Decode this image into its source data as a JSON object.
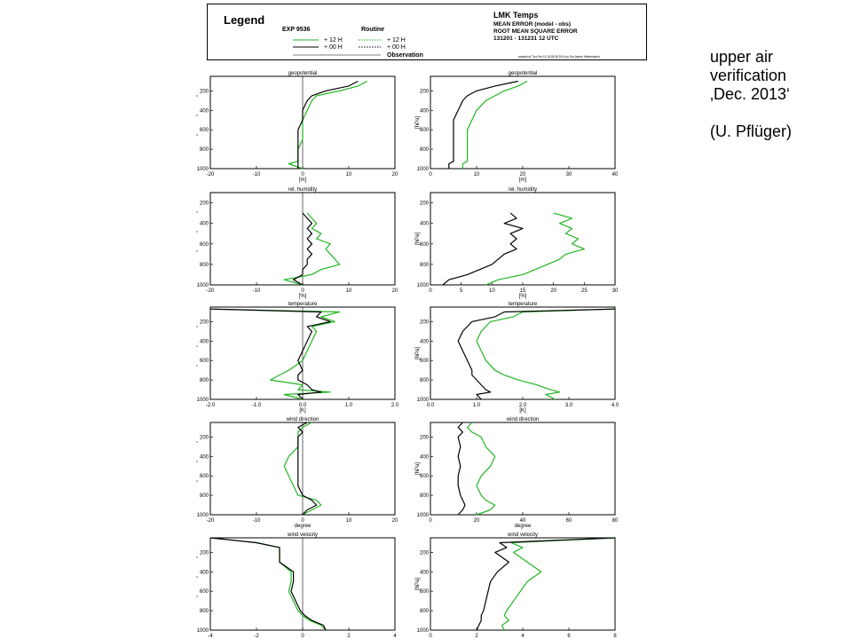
{
  "colors": {
    "exp12": "#22b422",
    "exp00": "#000000",
    "frame": "#000000"
  },
  "legend": {
    "heading": "Legend",
    "exp_label": "EXP 9536",
    "routine_label": "Routine",
    "row12": "+ 12 H",
    "row00": "+ 00 H",
    "routine12": "+ 12 H",
    "routine00": "+ 00 H",
    "obs_label": "Observation",
    "title": "LMK Temps",
    "line1": "MEAN ERROR (model - obs)",
    "line2": "ROOT MEAN SQUARE ERROR",
    "line3": "131201 - 131231 12 UTC",
    "created": "created at Thu Feb 13 15:28:38 2014 by Ow.Jaeher Wetterdienst"
  },
  "caption": {
    "line1": "upper air",
    "line2": "verification",
    "line3": "‚Dec. 2013‘",
    "line4": "(U. Pflüger)"
  },
  "chart_data": [
    {
      "type": "line",
      "title": "geopotential",
      "xlabel": "[m]",
      "ylabel": "",
      "xlim": [
        -20,
        20
      ],
      "xticks": [
        -20,
        -10,
        0,
        10,
        20
      ],
      "xtick_labels": [
        "-20",
        "-10",
        "0",
        "10",
        "20"
      ],
      "ylim": [
        1000,
        50
      ],
      "yticks": [
        200,
        400,
        600,
        800,
        1000
      ],
      "zero_line": true,
      "grid": false,
      "pressure": [
        100,
        150,
        200,
        250,
        300,
        400,
        500,
        600,
        700,
        800,
        850,
        925,
        950,
        1000
      ],
      "series": [
        {
          "name": "+ 12 H",
          "color": "#22b422",
          "values": [
            14,
            12,
            8,
            3,
            2,
            1,
            0,
            0,
            0,
            -1,
            -1,
            -1,
            -3,
            0
          ]
        },
        {
          "name": "+ 00 H",
          "color": "#000000",
          "values": [
            12,
            10,
            5,
            2,
            1,
            0,
            0,
            -1,
            -1,
            -1,
            -1,
            -1,
            -1,
            -1
          ]
        }
      ]
    },
    {
      "type": "line",
      "title": "geopotential",
      "xlabel": "[m]",
      "ylabel": "[hPa]",
      "xlim": [
        0,
        40
      ],
      "xticks": [
        0,
        10,
        20,
        30,
        40
      ],
      "xtick_labels": [
        "0",
        "10",
        "20",
        "30",
        "40"
      ],
      "ylim": [
        1000,
        50
      ],
      "yticks": [
        200,
        400,
        600,
        800,
        1000
      ],
      "zero_line": false,
      "grid": false,
      "pressure": [
        100,
        150,
        200,
        250,
        300,
        400,
        500,
        600,
        700,
        800,
        850,
        925,
        950,
        1000
      ],
      "series": [
        {
          "name": "+ 12 H",
          "color": "#22b422",
          "values": [
            21,
            19,
            16,
            14,
            12,
            10,
            9,
            8,
            8,
            8,
            8,
            8,
            7,
            7
          ]
        },
        {
          "name": "+ 00 H",
          "color": "#000000",
          "values": [
            19,
            14,
            10,
            8,
            7,
            6,
            5,
            5,
            5,
            5,
            5,
            5,
            4,
            4
          ]
        }
      ]
    },
    {
      "type": "line",
      "title": "rel. humidity",
      "xlabel": "[%]",
      "ylabel": "",
      "xlim": [
        -20,
        20
      ],
      "xticks": [
        -20,
        -10,
        0,
        10,
        20
      ],
      "xtick_labels": [
        "-20",
        "-10",
        "0",
        "10",
        "20"
      ],
      "ylim": [
        1000,
        100
      ],
      "yticks": [
        200,
        400,
        600,
        800,
        1000
      ],
      "zero_line": true,
      "grid": false,
      "pressure": [
        300,
        350,
        400,
        450,
        500,
        550,
        600,
        650,
        700,
        750,
        800,
        850,
        900,
        950,
        1000
      ],
      "series": [
        {
          "name": "+ 12 H",
          "color": "#22b422",
          "values": [
            1,
            2,
            3,
            2,
            4,
            3,
            6,
            5,
            6,
            7,
            8,
            4,
            2,
            -4,
            0
          ]
        },
        {
          "name": "+ 00 H",
          "color": "#000000",
          "values": [
            0,
            1,
            2,
            1,
            2,
            1,
            2,
            1,
            2,
            1,
            1,
            0,
            0,
            -2,
            0
          ]
        }
      ]
    },
    {
      "type": "line",
      "title": "rel. humidity",
      "xlabel": "[%]",
      "ylabel": "[hPa]",
      "xlim": [
        0,
        30
      ],
      "xticks": [
        0,
        5,
        10,
        15,
        20,
        25,
        30
      ],
      "xtick_labels": [
        "0",
        "5",
        "10",
        "15",
        "20",
        "25",
        "30"
      ],
      "ylim": [
        1000,
        100
      ],
      "yticks": [
        200,
        400,
        600,
        800,
        1000
      ],
      "zero_line": false,
      "grid": false,
      "pressure": [
        300,
        350,
        400,
        450,
        500,
        550,
        600,
        650,
        700,
        750,
        800,
        850,
        900,
        950,
        1000
      ],
      "series": [
        {
          "name": "+ 12 H",
          "color": "#22b422",
          "values": [
            20,
            23,
            21,
            23,
            22,
            24,
            23,
            25,
            22,
            21,
            19,
            17,
            15,
            11,
            9
          ]
        },
        {
          "name": "+ 00 H",
          "color": "#000000",
          "values": [
            13,
            14,
            12,
            15,
            13,
            14,
            13,
            14,
            12,
            11,
            10,
            8,
            6,
            3,
            2
          ]
        }
      ]
    },
    {
      "type": "line",
      "title": "temperature",
      "xlabel": "[K]",
      "ylabel": "",
      "xlim": [
        -2,
        2
      ],
      "xticks": [
        -2,
        -1,
        0,
        1,
        2
      ],
      "xtick_labels": [
        "-2.0",
        "-1.0",
        "0.0",
        "1.0",
        "2.0"
      ],
      "ylim": [
        1000,
        50
      ],
      "yticks": [
        200,
        400,
        600,
        800,
        1000
      ],
      "zero_line": true,
      "grid": false,
      "pressure": [
        70,
        100,
        150,
        200,
        250,
        300,
        400,
        500,
        600,
        700,
        750,
        800,
        850,
        900,
        925,
        950,
        1000
      ],
      "series": [
        {
          "name": "+ 12 H",
          "color": "#22b422",
          "values": [
            -2.0,
            0.8,
            0.4,
            0.7,
            0.2,
            0.3,
            0.2,
            0.1,
            0.0,
            -0.3,
            -0.5,
            -0.7,
            0.0,
            -0.1,
            0.6,
            -0.4,
            0.0
          ]
        },
        {
          "name": "+ 00 H",
          "color": "#000000",
          "values": [
            -2.0,
            0.4,
            0.3,
            0.6,
            0.1,
            0.2,
            0.1,
            0.0,
            -0.1,
            0.0,
            -0.1,
            -0.1,
            0.1,
            0.2,
            0.4,
            -0.1,
            0.0
          ]
        }
      ]
    },
    {
      "type": "line",
      "title": "temperature",
      "xlabel": "[K]",
      "ylabel": "[hPa]",
      "xlim": [
        0,
        4
      ],
      "xticks": [
        0,
        1,
        2,
        3,
        4
      ],
      "xtick_labels": [
        "0.0",
        "1.0",
        "2.0",
        "3.0",
        "4.0"
      ],
      "ylim": [
        1000,
        50
      ],
      "yticks": [
        200,
        400,
        600,
        800,
        1000
      ],
      "zero_line": false,
      "grid": false,
      "pressure": [
        70,
        100,
        150,
        200,
        250,
        300,
        400,
        500,
        600,
        700,
        750,
        800,
        850,
        900,
        925,
        950,
        1000
      ],
      "series": [
        {
          "name": "+ 12 H",
          "color": "#22b422",
          "values": [
            4.0,
            2.0,
            1.8,
            1.3,
            1.2,
            1.1,
            1.0,
            1.1,
            1.2,
            1.4,
            1.6,
            1.9,
            2.3,
            2.6,
            2.8,
            2.5,
            2.7
          ]
        },
        {
          "name": "+ 00 H",
          "color": "#000000",
          "values": [
            4.0,
            1.6,
            1.4,
            0.9,
            0.8,
            0.7,
            0.6,
            0.7,
            0.8,
            0.9,
            0.9,
            1.0,
            1.1,
            1.2,
            1.3,
            1.0,
            1.1
          ]
        }
      ]
    },
    {
      "type": "line",
      "title": "wind direction",
      "xlabel": "degree",
      "ylabel": "",
      "xlim": [
        -20,
        20
      ],
      "xticks": [
        -20,
        -10,
        0,
        10,
        20
      ],
      "xtick_labels": [
        "-20",
        "-10",
        "0",
        "10",
        "20"
      ],
      "ylim": [
        1000,
        50
      ],
      "yticks": [
        200,
        400,
        600,
        800,
        1000
      ],
      "zero_line": true,
      "grid": false,
      "pressure": [
        50,
        100,
        150,
        200,
        300,
        400,
        500,
        600,
        700,
        800,
        850,
        900,
        950,
        1000
      ],
      "series": [
        {
          "name": "+ 12 H",
          "color": "#22b422",
          "values": [
            2,
            0,
            -1,
            -1,
            -1,
            -3,
            -4,
            -3,
            -2,
            -1,
            3,
            4,
            2,
            0
          ]
        },
        {
          "name": "+ 00 H",
          "color": "#000000",
          "values": [
            1,
            -1,
            0,
            -1,
            -1,
            -1,
            -1,
            -1,
            -1,
            0,
            2,
            3,
            1,
            0
          ]
        }
      ]
    },
    {
      "type": "line",
      "title": "wind direction",
      "xlabel": "degree",
      "ylabel": "[hPa]",
      "xlim": [
        0,
        80
      ],
      "xticks": [
        0,
        20,
        40,
        60,
        80
      ],
      "xtick_labels": [
        "0",
        "20",
        "40",
        "60",
        "80"
      ],
      "ylim": [
        1000,
        50
      ],
      "yticks": [
        200,
        400,
        600,
        800,
        1000
      ],
      "zero_line": false,
      "grid": false,
      "pressure": [
        50,
        100,
        150,
        200,
        300,
        400,
        500,
        600,
        700,
        800,
        850,
        900,
        950,
        1000
      ],
      "series": [
        {
          "name": "+ 12 H",
          "color": "#22b422",
          "values": [
            18,
            16,
            18,
            22,
            24,
            28,
            26,
            22,
            20,
            22,
            24,
            28,
            26,
            20
          ]
        },
        {
          "name": "+ 00 H",
          "color": "#000000",
          "values": [
            14,
            12,
            14,
            12,
            13,
            12,
            13,
            12,
            12,
            13,
            14,
            15,
            14,
            12
          ]
        }
      ]
    },
    {
      "type": "line",
      "title": "wind velocity",
      "xlabel": "[m/s]",
      "ylabel": "",
      "xlim": [
        -4,
        4
      ],
      "xticks": [
        -4,
        -2,
        0,
        2,
        4
      ],
      "xtick_labels": [
        "-4",
        "-2",
        "0",
        "2",
        "4"
      ],
      "ylim": [
        1000,
        50
      ],
      "yticks": [
        200,
        400,
        600,
        800,
        1000
      ],
      "zero_line": true,
      "grid": false,
      "pressure": [
        50,
        100,
        150,
        200,
        300,
        400,
        500,
        600,
        700,
        800,
        850,
        900,
        950,
        1000
      ],
      "series": [
        {
          "name": "+ 12 H",
          "color": "#22b422",
          "values": [
            -4,
            -2,
            -1,
            -1,
            -1,
            -0.5,
            -0.5,
            -0.6,
            -0.4,
            -0.2,
            0,
            0.3,
            0.8,
            1.0
          ]
        },
        {
          "name": "+ 00 H",
          "color": "#000000",
          "values": [
            -4,
            -2,
            -1,
            -1,
            -1,
            -0.4,
            -0.4,
            -0.5,
            -0.3,
            -0.1,
            0.1,
            0.4,
            0.9,
            1.0
          ]
        }
      ]
    },
    {
      "type": "line",
      "title": "wind velocity",
      "xlabel": "[m/s]",
      "ylabel": "[hPa]",
      "xlim": [
        0,
        8
      ],
      "xticks": [
        0,
        2,
        4,
        6,
        8
      ],
      "xtick_labels": [
        "0",
        "2",
        "4",
        "6",
        "8"
      ],
      "ylim": [
        1000,
        50
      ],
      "yticks": [
        200,
        400,
        600,
        800,
        1000
      ],
      "zero_line": false,
      "grid": false,
      "pressure": [
        50,
        100,
        150,
        200,
        300,
        400,
        500,
        600,
        700,
        800,
        850,
        900,
        950,
        1000
      ],
      "series": [
        {
          "name": "+ 12 H",
          "color": "#22b422",
          "values": [
            8,
            3.5,
            4.0,
            3.6,
            4.2,
            4.8,
            4.2,
            3.9,
            3.6,
            3.3,
            3.2,
            3.4,
            3.1,
            3.2
          ]
        },
        {
          "name": "+ 00 H",
          "color": "#000000",
          "values": [
            8,
            3.0,
            3.3,
            2.8,
            3.4,
            2.9,
            2.6,
            2.5,
            2.4,
            2.3,
            2.2,
            2.2,
            2.1,
            2.0
          ]
        }
      ]
    }
  ]
}
